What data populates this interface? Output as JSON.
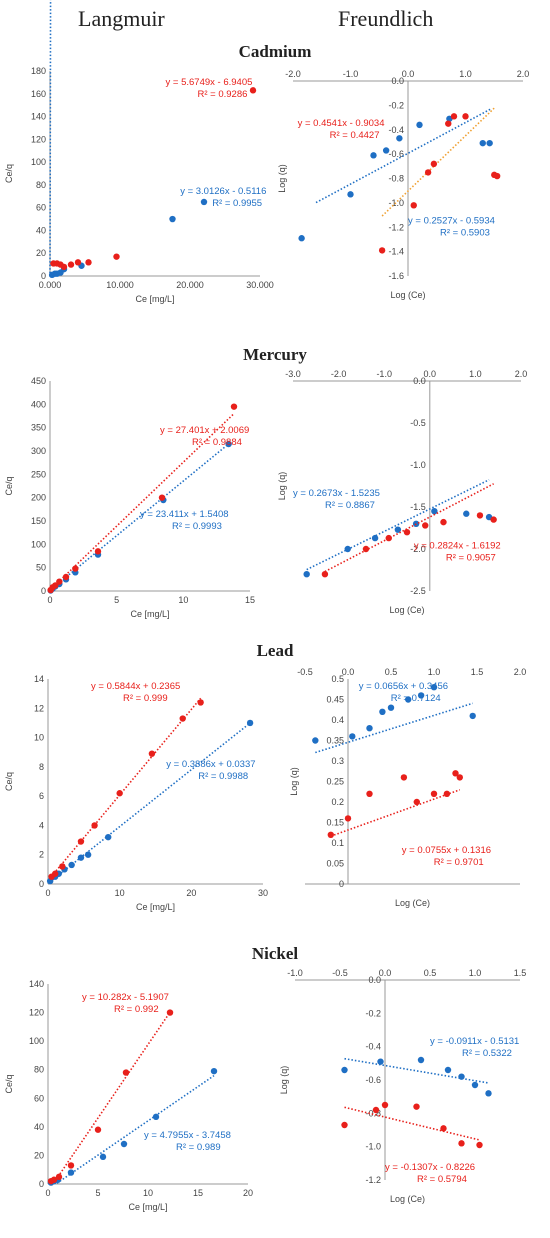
{
  "headers": {
    "langmuir": "Langmuir",
    "freundlich": "Freundlich"
  },
  "metals": [
    "Cadmium",
    "Mercury",
    "Lead",
    "Nickel"
  ],
  "chart_data": [
    {
      "id": "cd_l",
      "type": "scatter",
      "xlabel": "Ce [mg/L]",
      "ylabel": "Ce/q",
      "xlim": [
        0,
        30000
      ],
      "ylim": [
        0,
        180
      ],
      "xticks": [
        0,
        10000,
        20000,
        30000
      ],
      "xtick_labels": [
        "0.000",
        "10.000",
        "20.000",
        "30.000"
      ],
      "yticks": [
        0,
        20,
        40,
        60,
        80,
        100,
        120,
        140,
        160,
        180
      ],
      "axis_cross": [
        0,
        0
      ],
      "grid": false,
      "series": [
        {
          "color": "#1f6fc4",
          "points": [
            [
              300,
              1
            ],
            [
              700,
              2
            ],
            [
              1000,
              2
            ],
            [
              1500,
              3
            ],
            [
              2000,
              6
            ],
            [
              4500,
              9
            ],
            [
              17500,
              50
            ],
            [
              22000,
              65
            ]
          ],
          "fit": [
            -0.5116,
            3.0126
          ],
          "fit_x": [
            0,
            22000
          ],
          "fit_style": "dotted",
          "eq": "y = 3.0126x - 0.5116",
          "r2": "R² = 0.9955"
        },
        {
          "color": "#e8201b",
          "points": [
            [
              500,
              11
            ],
            [
              1000,
              11
            ],
            [
              1500,
              10
            ],
            [
              2000,
              8
            ],
            [
              3000,
              10
            ],
            [
              4000,
              12
            ],
            [
              5500,
              12
            ],
            [
              9500,
              17
            ],
            [
              29000,
              163
            ]
          ],
          "fit": [
            -6.9405,
            5.6749
          ],
          "fit_x": [
            1500,
            29000
          ],
          "fit_style": "dotted",
          "eq": "y = 5.6749x - 6.9405",
          "r2": "R² = 0.9286"
        }
      ]
    },
    {
      "id": "cd_f",
      "type": "scatter",
      "xlabel": "Log (Ce)",
      "ylabel": "Log (q)",
      "xlim": [
        -2,
        2
      ],
      "ylim": [
        -1.6,
        0
      ],
      "xticks": [
        -2,
        -1,
        0,
        1,
        2
      ],
      "xtick_labels": [
        "-2.0",
        "-1.0",
        "0.0",
        "1.0",
        "2.0"
      ],
      "yticks": [
        0,
        -0.2,
        -0.4,
        -0.6,
        -0.8,
        -1,
        -1.2,
        -1.4,
        -1.6
      ],
      "ytick_labels": [
        "0.0",
        "-0.2",
        "-0.4",
        "-0.6",
        "-0.8",
        "-1.0",
        "-1.2",
        "-1.4",
        "-1.6"
      ],
      "axis_cross": [
        0,
        0
      ],
      "grid": false,
      "series": [
        {
          "color": "#1f6fc4",
          "points": [
            [
              -1.85,
              -1.29
            ],
            [
              -1.0,
              -0.93
            ],
            [
              -0.6,
              -0.61
            ],
            [
              -0.38,
              -0.57
            ],
            [
              -0.15,
              -0.47
            ],
            [
              0.2,
              -0.36
            ],
            [
              0.72,
              -0.31
            ],
            [
              1.3,
              -0.51
            ],
            [
              1.42,
              -0.51
            ]
          ],
          "fit": [
            -0.5934,
            0.2527
          ],
          "fit_x": [
            -1.6,
            1.45
          ],
          "fit_style": "dotted",
          "eq": "y = 0.2527x - 0.5934",
          "r2": "R² = 0.5903"
        },
        {
          "color": "#e8201b",
          "points": [
            [
              -0.45,
              -1.39
            ],
            [
              0.1,
              -1.02
            ],
            [
              0.35,
              -0.75
            ],
            [
              0.45,
              -0.68
            ],
            [
              0.7,
              -0.35
            ],
            [
              0.8,
              -0.29
            ],
            [
              1.0,
              -0.29
            ],
            [
              1.55,
              -0.78
            ],
            [
              1.5,
              -0.77
            ]
          ],
          "fit": [
            -0.9034,
            0.4541
          ],
          "fit_x": [
            -0.45,
            1.5
          ],
          "fit_style": "dotted",
          "fit_color": "#f0a030",
          "eq": "y = 0.4541x - 0.9034",
          "r2": "R² = 0.4427"
        }
      ]
    },
    {
      "id": "hg_l",
      "type": "scatter",
      "xlabel": "Ce [mg/L]",
      "ylabel": "Ce/q",
      "xlim": [
        0,
        15
      ],
      "ylim": [
        0,
        450
      ],
      "xticks": [
        0,
        5,
        10,
        15
      ],
      "yticks": [
        0,
        50,
        100,
        150,
        200,
        250,
        300,
        350,
        400,
        450
      ],
      "axis_cross": [
        0,
        0
      ],
      "grid": false,
      "series": [
        {
          "color": "#1f6fc4",
          "points": [
            [
              0.05,
              1
            ],
            [
              0.2,
              5
            ],
            [
              0.4,
              10
            ],
            [
              0.7,
              15
            ],
            [
              1.2,
              25
            ],
            [
              1.9,
              40
            ],
            [
              3.6,
              78
            ],
            [
              8.5,
              195
            ],
            [
              13.4,
              315
            ]
          ],
          "fit": [
            1.5408,
            23.411
          ],
          "fit_x": [
            0,
            13.4
          ],
          "fit_style": "dotted",
          "eq": "y = 23.411x + 1.5408",
          "r2": "R² = 0.9993"
        },
        {
          "color": "#e8201b",
          "points": [
            [
              0.05,
              2
            ],
            [
              0.2,
              8
            ],
            [
              0.4,
              12
            ],
            [
              0.7,
              20
            ],
            [
              1.2,
              30
            ],
            [
              1.9,
              48
            ],
            [
              3.6,
              85
            ],
            [
              8.4,
              200
            ],
            [
              13.8,
              395
            ]
          ],
          "fit": [
            2.0069,
            27.401
          ],
          "fit_x": [
            0,
            13.8
          ],
          "fit_style": "dotted",
          "eq": "y = 27.401x + 2.0069",
          "r2": "R² = 0.9884"
        }
      ]
    },
    {
      "id": "hg_f",
      "type": "scatter",
      "xlabel": "Log (Ce)",
      "ylabel": "Log (q)",
      "xlim": [
        -3,
        2
      ],
      "ylim": [
        -2.5,
        0
      ],
      "xticks": [
        -3,
        -2,
        -1,
        0,
        1,
        2
      ],
      "xtick_labels": [
        "-3.0",
        "-2.0",
        "-1.0",
        "0.0",
        "1.0",
        "2.0"
      ],
      "yticks": [
        0,
        -0.5,
        -1,
        -1.5,
        -2,
        -2.5
      ],
      "ytick_labels": [
        "0.0",
        "-0.5",
        "-1.0",
        "-1.5",
        "-2.0",
        "-2.5"
      ],
      "axis_cross": [
        0,
        0
      ],
      "grid": false,
      "series": [
        {
          "color": "#1f6fc4",
          "points": [
            [
              -2.7,
              -2.3
            ],
            [
              -1.8,
              -2.0
            ],
            [
              -1.2,
              -1.87
            ],
            [
              -0.7,
              -1.77
            ],
            [
              -0.3,
              -1.7
            ],
            [
              0.1,
              -1.55
            ],
            [
              0.8,
              -1.58
            ],
            [
              1.3,
              -1.62
            ]
          ],
          "fit": [
            -1.5235,
            0.2673
          ],
          "fit_x": [
            -2.7,
            1.3
          ],
          "fit_style": "dotted",
          "eq": "y = 0.2673x - 1.5235",
          "r2": "R² = 0.8867"
        },
        {
          "color": "#e8201b",
          "points": [
            [
              -2.3,
              -2.3
            ],
            [
              -1.4,
              -2.0
            ],
            [
              -0.9,
              -1.87
            ],
            [
              -0.5,
              -1.8
            ],
            [
              -0.1,
              -1.72
            ],
            [
              0.3,
              -1.68
            ],
            [
              1.1,
              -1.6
            ],
            [
              1.4,
              -1.65
            ]
          ],
          "fit": [
            -1.6192,
            0.2824
          ],
          "fit_x": [
            -2.3,
            1.4
          ],
          "fit_style": "dotted",
          "eq": "y = 0.2824x - 1.6192",
          "r2": "R² = 0.9057"
        }
      ]
    },
    {
      "id": "pb_l",
      "type": "scatter",
      "xlabel": "Ce [mg/L]",
      "ylabel": "Ce/q",
      "xlim": [
        0,
        30
      ],
      "ylim": [
        0,
        14
      ],
      "xticks": [
        0,
        10,
        20,
        30
      ],
      "yticks": [
        0,
        2,
        4,
        6,
        8,
        10,
        12,
        14
      ],
      "axis_cross": [
        0,
        0
      ],
      "grid": false,
      "series": [
        {
          "color": "#1f6fc4",
          "points": [
            [
              0.3,
              0.2
            ],
            [
              1.0,
              0.5
            ],
            [
              1.5,
              0.7
            ],
            [
              2.3,
              1.0
            ],
            [
              3.3,
              1.3
            ],
            [
              4.6,
              1.8
            ],
            [
              5.6,
              2.0
            ],
            [
              8.4,
              3.2
            ],
            [
              28.2,
              11.0
            ]
          ],
          "fit": [
            0.0337,
            0.3886
          ],
          "fit_x": [
            0.3,
            28.2
          ],
          "fit_style": "dotted",
          "eq": "y = 0.3886x + 0.0337",
          "r2": "R² = 0.9988"
        },
        {
          "color": "#e8201b",
          "points": [
            [
              0.5,
              0.5
            ],
            [
              1.0,
              0.7
            ],
            [
              2.0,
              1.2
            ],
            [
              4.6,
              2.9
            ],
            [
              6.5,
              4.0
            ],
            [
              10.0,
              6.2
            ],
            [
              14.5,
              8.9
            ],
            [
              18.8,
              11.3
            ],
            [
              21.3,
              12.4
            ]
          ],
          "fit": [
            0.2365,
            0.5844
          ],
          "fit_x": [
            0.5,
            21.3
          ],
          "fit_style": "dotted",
          "eq": "y = 0.5844x + 0.2365",
          "r2": "R² = 0.999"
        }
      ]
    },
    {
      "id": "pb_f",
      "type": "scatter",
      "xlabel": "Log (Ce)",
      "ylabel": "Log (q)",
      "xlim": [
        -0.5,
        2
      ],
      "ylim": [
        0,
        0.5
      ],
      "xticks": [
        -0.5,
        0,
        0.5,
        1,
        1.5,
        2
      ],
      "xtick_labels": [
        "-0.5",
        "0.0",
        "0.5",
        "1.0",
        "1.5",
        "2.0"
      ],
      "yticks": [
        0,
        0.05,
        0.1,
        0.15,
        0.2,
        0.25,
        0.3,
        0.35,
        0.4,
        0.45,
        0.5
      ],
      "ytick_labels": [
        "0",
        "0.05",
        "0.1",
        "0.15",
        "0.2",
        "0.25",
        "0.3",
        "0.35",
        "0.4",
        "0.45",
        "0.5"
      ],
      "axis_cross": [
        0,
        0
      ],
      "grid": false,
      "series": [
        {
          "color": "#1f6fc4",
          "points": [
            [
              -0.38,
              0.35
            ],
            [
              0.05,
              0.36
            ],
            [
              0.25,
              0.38
            ],
            [
              0.4,
              0.42
            ],
            [
              0.5,
              0.43
            ],
            [
              0.7,
              0.45
            ],
            [
              0.85,
              0.46
            ],
            [
              1.0,
              0.48
            ],
            [
              1.45,
              0.41
            ]
          ],
          "fit": [
            0.3456,
            0.0656
          ],
          "fit_x": [
            -0.38,
            1.45
          ],
          "fit_style": "dotted",
          "eq": "y = 0.0656x + 0.3456",
          "r2": "R² = 0.7124"
        },
        {
          "color": "#e8201b",
          "points": [
            [
              -0.2,
              0.12
            ],
            [
              0.0,
              0.16
            ],
            [
              0.25,
              0.22
            ],
            [
              0.65,
              0.26
            ],
            [
              0.8,
              0.2
            ],
            [
              1.0,
              0.22
            ],
            [
              1.15,
              0.22
            ],
            [
              1.3,
              0.26
            ],
            [
              1.25,
              0.27
            ]
          ],
          "fit": [
            0.1316,
            0.0755
          ],
          "fit_x": [
            -0.2,
            1.3
          ],
          "fit_style": "dotted",
          "eq": "y = 0.0755x + 0.1316",
          "r2": "R² = 0.9701"
        }
      ]
    },
    {
      "id": "ni_l",
      "type": "scatter",
      "xlabel": "Ce [mg/L]",
      "ylabel": "Ce/q",
      "xlim": [
        0,
        20
      ],
      "ylim": [
        0,
        140
      ],
      "xticks": [
        0,
        5,
        10,
        15,
        20
      ],
      "yticks": [
        0,
        20,
        40,
        60,
        80,
        100,
        120,
        140
      ],
      "axis_cross": [
        0,
        0
      ],
      "grid": false,
      "series": [
        {
          "color": "#1f6fc4",
          "points": [
            [
              0.3,
              1
            ],
            [
              0.6,
              2
            ],
            [
              1.0,
              3
            ],
            [
              2.3,
              8
            ],
            [
              5.5,
              19
            ],
            [
              7.6,
              28
            ],
            [
              10.8,
              47
            ],
            [
              16.6,
              79
            ]
          ],
          "fit": [
            -3.7458,
            4.7955
          ],
          "fit_x": [
            0.9,
            16.6
          ],
          "fit_style": "dotted",
          "eq": "y = 4.7955x - 3.7458",
          "r2": "R² = 0.989"
        },
        {
          "color": "#e8201b",
          "points": [
            [
              0.3,
              2
            ],
            [
              0.6,
              3
            ],
            [
              1.1,
              5
            ],
            [
              2.3,
              13
            ],
            [
              5.0,
              38
            ],
            [
              7.8,
              78
            ],
            [
              12.2,
              120
            ]
          ],
          "fit": [
            -5.1907,
            10.282
          ],
          "fit_x": [
            0.6,
            12.2
          ],
          "fit_style": "dotted",
          "eq": "y = 10.282x - 5.1907",
          "r2": "R² = 0.992"
        }
      ]
    },
    {
      "id": "ni_f",
      "type": "scatter",
      "xlabel": "Log (Ce)",
      "ylabel": "Log (q)",
      "xlim": [
        -1,
        1.5
      ],
      "ylim": [
        -1.2,
        0
      ],
      "xticks": [
        -1,
        -0.5,
        0,
        0.5,
        1,
        1.5
      ],
      "xtick_labels": [
        "-1.0",
        "-0.5",
        "0.0",
        "0.5",
        "1.0",
        "1.5"
      ],
      "yticks": [
        0,
        -0.2,
        -0.4,
        -0.6,
        -0.8,
        -1,
        -1.2
      ],
      "ytick_labels": [
        "0.0",
        "-0.2",
        "-0.4",
        "-0.6",
        "-0.8",
        "-1.0",
        "-1.2"
      ],
      "axis_cross": [
        0,
        0
      ],
      "grid": false,
      "series": [
        {
          "color": "#1f6fc4",
          "points": [
            [
              -0.45,
              -0.54
            ],
            [
              -0.05,
              -0.49
            ],
            [
              0.4,
              -0.48
            ],
            [
              0.7,
              -0.54
            ],
            [
              0.85,
              -0.58
            ],
            [
              1.0,
              -0.63
            ],
            [
              1.15,
              -0.68
            ]
          ],
          "fit": [
            -0.5131,
            -0.0911
          ],
          "fit_x": [
            -0.45,
            1.15
          ],
          "fit_style": "dotted",
          "eq": "y = -0.0911x - 0.5131",
          "r2": "R² = 0.5322"
        },
        {
          "color": "#e8201b",
          "points": [
            [
              -0.45,
              -0.87
            ],
            [
              -0.1,
              -0.78
            ],
            [
              0.0,
              -0.75
            ],
            [
              0.35,
              -0.76
            ],
            [
              0.65,
              -0.89
            ],
            [
              0.85,
              -0.98
            ],
            [
              1.05,
              -0.99
            ]
          ],
          "fit": [
            -0.8226,
            -0.1307
          ],
          "fit_x": [
            -0.45,
            1.05
          ],
          "fit_style": "dotted",
          "eq": "y = -0.1307x - 0.8226",
          "r2": "R² = 0.5794"
        }
      ]
    }
  ]
}
